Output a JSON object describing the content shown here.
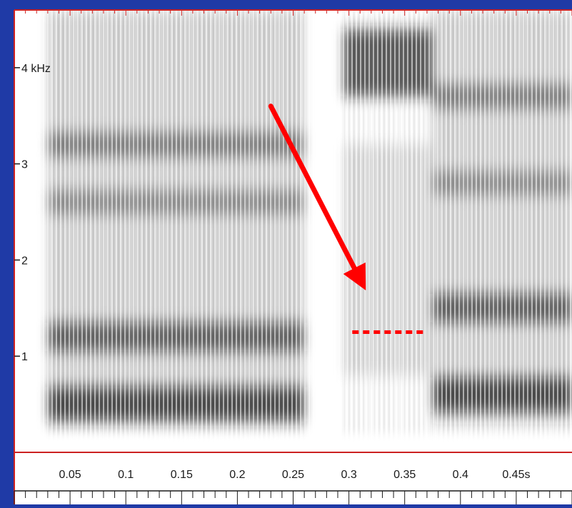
{
  "chart_data": {
    "type": "heatmap",
    "title": "",
    "xlabel": "",
    "ylabel": "",
    "x_unit": "s",
    "y_unit": "kHz",
    "xlim": [
      0.0,
      0.5
    ],
    "ylim": [
      0.0,
      4.6
    ],
    "x_ticks": [
      {
        "value": 0.05,
        "label": "0.05"
      },
      {
        "value": 0.1,
        "label": "0.1"
      },
      {
        "value": 0.15,
        "label": "0.15"
      },
      {
        "value": 0.2,
        "label": "0.2"
      },
      {
        "value": 0.25,
        "label": "0.25"
      },
      {
        "value": 0.3,
        "label": "0.3"
      },
      {
        "value": 0.35,
        "label": "0.35"
      },
      {
        "value": 0.4,
        "label": "0.4"
      },
      {
        "value": 0.45,
        "label": "0.45s"
      }
    ],
    "y_ticks": [
      {
        "value": 1,
        "label": "1"
      },
      {
        "value": 2,
        "label": "2"
      },
      {
        "value": 3,
        "label": "3"
      },
      {
        "value": 4,
        "label": "4 kHz"
      }
    ],
    "segments": [
      {
        "t_start": 0.03,
        "t_end": 0.26,
        "type": "vowel",
        "formants_khz": [
          0.5,
          1.2,
          2.6,
          3.2
        ]
      },
      {
        "t_start": 0.26,
        "t_end": 0.295,
        "type": "closure"
      },
      {
        "t_start": 0.295,
        "t_end": 0.375,
        "type": "release",
        "peak_khz": [
          3.7,
          4.4
        ]
      },
      {
        "t_start": 0.375,
        "t_end": 0.5,
        "type": "vowel",
        "formants_khz": [
          0.6,
          1.5,
          2.8,
          3.7
        ]
      }
    ],
    "annotations": [
      {
        "kind": "arrow",
        "from": {
          "t": 0.23,
          "f_khz": 3.6
        },
        "to": {
          "t": 0.31,
          "f_khz": 1.8
        },
        "color": "#ff0000"
      },
      {
        "kind": "dotted-line",
        "t_start": 0.303,
        "t_end": 0.37,
        "f_khz": 1.25,
        "color": "#ff0000"
      }
    ]
  },
  "colors": {
    "frame": "#1f3aa6",
    "plot_background": "#ffffff",
    "axis_line": "#cc2222",
    "ink": "#1a1a1a",
    "annotation": "#ff0000"
  }
}
